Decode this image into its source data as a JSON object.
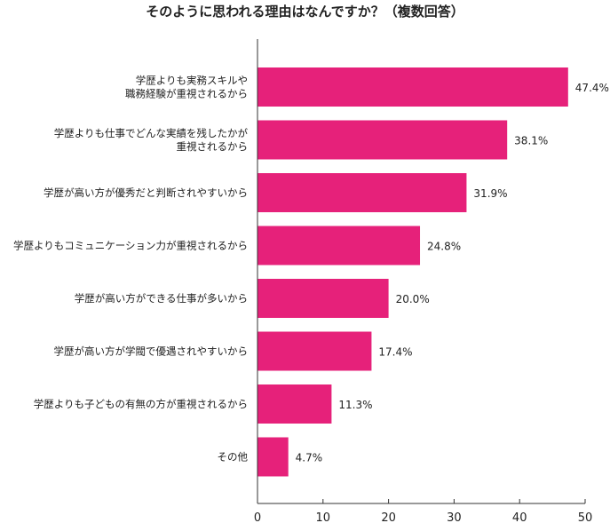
{
  "chart_data": {
    "type": "bar",
    "orientation": "horizontal",
    "title": "そのように思われる理由はなんですか？（複数回答）",
    "categories": [
      [
        "学歴よりも実務スキルや",
        "職務経験が重視されるから"
      ],
      [
        "学歴よりも仕事でどんな実績を残したかが",
        "重視されるから"
      ],
      [
        "学歴が高い方が優秀だと判断されやすいから"
      ],
      [
        "学歴よりもコミュニケーション力が重視されるから"
      ],
      [
        "学歴が高い方ができる仕事が多いから"
      ],
      [
        "学歴が高い方が学閥で優遇されやすいから"
      ],
      [
        "学歴よりも子どもの有無の方が重視されるから"
      ],
      [
        "その他"
      ]
    ],
    "values": [
      47.4,
      38.1,
      31.9,
      24.8,
      20.0,
      17.4,
      11.3,
      4.7
    ],
    "value_labels": [
      "47.4%",
      "38.1%",
      "31.9%",
      "24.8%",
      "20.0%",
      "17.4%",
      "11.3%",
      "4.7%"
    ],
    "xlim": [
      0,
      50
    ],
    "xticks": [
      "0",
      "10",
      "20",
      "30",
      "40",
      "50"
    ],
    "bar_color": "#e6217a",
    "grid": false,
    "legend": "none"
  }
}
